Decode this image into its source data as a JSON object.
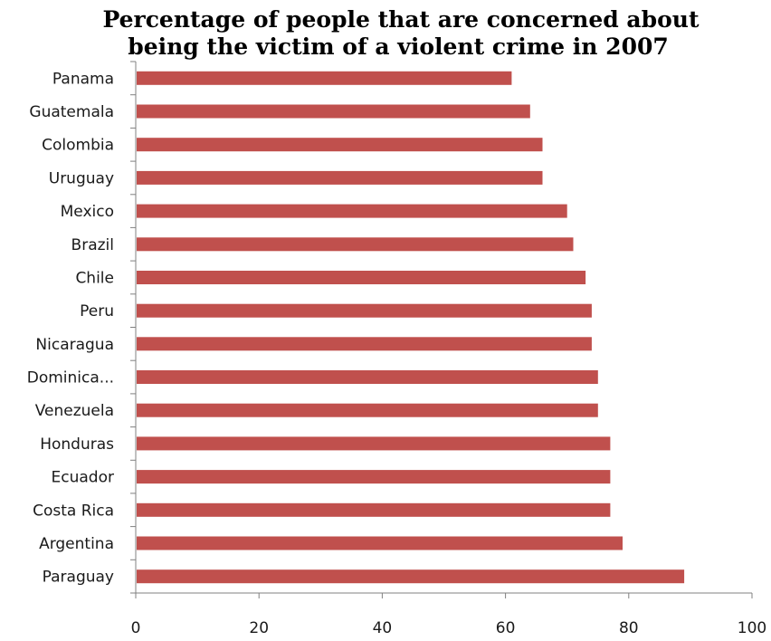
{
  "chart_data": {
    "type": "bar",
    "orientation": "horizontal",
    "title_lines": [
      "Percentage of people that are concerned about",
      "being the victim of a violent crime in 2007"
    ],
    "categories": [
      "Panama",
      "Guatemala",
      "Colombia",
      "Uruguay",
      "Mexico",
      "Brazil",
      "Chile",
      "Peru",
      "Nicaragua",
      "Dominica...",
      "Venezuela",
      "Honduras",
      "Ecuador",
      "Costa Rica",
      "Argentina",
      "Paraguay"
    ],
    "values": [
      61,
      64,
      66,
      66,
      70,
      71,
      73,
      74,
      74,
      75,
      75,
      77,
      77,
      77,
      79,
      89
    ],
    "xlim": [
      0,
      100
    ],
    "xticks": [
      0,
      20,
      40,
      60,
      80,
      100
    ],
    "xtick_labels": [
      "0",
      "20",
      "40",
      "60",
      "80",
      "100"
    ],
    "xlabel": "",
    "ylabel": "",
    "grid": false,
    "legend": "none",
    "bar_color": "#c0504d"
  }
}
